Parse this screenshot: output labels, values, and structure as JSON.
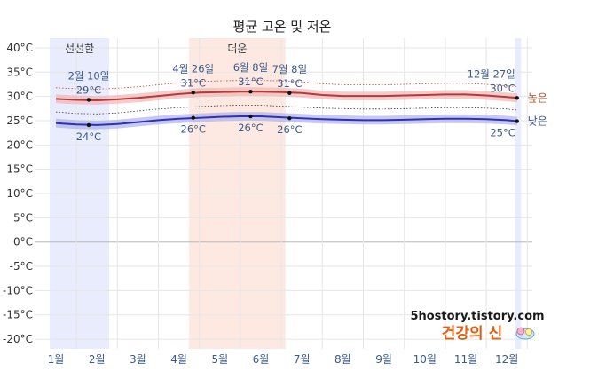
{
  "chart_data": {
    "type": "line",
    "title": "평균 고온 및 저온",
    "months": [
      "1월",
      "2월",
      "3월",
      "4월",
      "5월",
      "6월",
      "7월",
      "8월",
      "9월",
      "10월",
      "11월",
      "12월"
    ],
    "y_ticks": [
      "40°C",
      "35°C",
      "30°C",
      "25°C",
      "20°C",
      "15°C",
      "10°C",
      "5°C",
      "0°C",
      "-5°C",
      "-10°C",
      "-15°C",
      "-20°C"
    ],
    "ylim": [
      -22,
      42
    ],
    "grid": true,
    "bands": [
      {
        "label": "선선한",
        "start_month": 0.85,
        "end_month": 2.3,
        "color": "#e8ecfc"
      },
      {
        "label": "더운",
        "start_month": 4.25,
        "end_month": 6.6,
        "color": "#fde9e2"
      },
      {
        "label": "",
        "start_month": 12.2,
        "end_month": 12.35,
        "color": "#e8ecfc"
      }
    ],
    "series": [
      {
        "name": "높은",
        "color": "#b23a3a",
        "band_color": "#f1b5b5",
        "dotted_color": "#c04040",
        "x": [
          1,
          1.5,
          2,
          2.5,
          3,
          3.5,
          4,
          4.5,
          5,
          5.5,
          6,
          6.5,
          7,
          7.5,
          8,
          8.5,
          9,
          9.5,
          10,
          10.5,
          11,
          11.5,
          12,
          12.25
        ],
        "y": [
          29.5,
          29.3,
          29.2,
          29.4,
          29.7,
          30.1,
          30.5,
          30.8,
          30.9,
          31,
          31,
          30.9,
          30.7,
          30.3,
          30.1,
          30.1,
          30.1,
          30.2,
          30.3,
          30.4,
          30.4,
          30.2,
          29.9,
          29.7
        ]
      },
      {
        "name": "낮은",
        "color": "#3030b0",
        "band_color": "#aeb2ee",
        "dotted_color": "#333333",
        "x": [
          1,
          1.5,
          2,
          2.5,
          3,
          3.5,
          4,
          4.5,
          5,
          5.5,
          6,
          6.5,
          7,
          7.5,
          8,
          8.5,
          9,
          9.5,
          10,
          10.5,
          11,
          11.5,
          12,
          12.25
        ],
        "y": [
          24.5,
          24.2,
          24.1,
          24.3,
          24.7,
          25.1,
          25.4,
          25.6,
          25.8,
          25.9,
          25.9,
          25.7,
          25.5,
          25.3,
          25.2,
          25.1,
          25.1,
          25.2,
          25.3,
          25.4,
          25.4,
          25.3,
          25.1,
          24.9
        ]
      }
    ],
    "annotations": [
      {
        "date": "2월 10일",
        "value": "29°C",
        "x": 1.8,
        "y": 29.3,
        "pos": "above"
      },
      {
        "date": "",
        "value": "24°C",
        "x": 1.8,
        "y": 24.1,
        "pos": "below"
      },
      {
        "date": "4월 26일",
        "value": "31°C",
        "x": 4.35,
        "y": 30.8,
        "pos": "above"
      },
      {
        "date": "",
        "value": "26°C",
        "x": 4.35,
        "y": 25.6,
        "pos": "below"
      },
      {
        "date": "6월 8일",
        "value": "31°C",
        "x": 5.75,
        "y": 31,
        "pos": "above"
      },
      {
        "date": "",
        "value": "26°C",
        "x": 5.75,
        "y": 25.9,
        "pos": "below"
      },
      {
        "date": "7월 8일",
        "value": "31°C",
        "x": 6.7,
        "y": 30.7,
        "pos": "above"
      },
      {
        "date": "",
        "value": "26°C",
        "x": 6.7,
        "y": 25.5,
        "pos": "below"
      },
      {
        "date": "12월 27일",
        "value": "30°C",
        "x": 12.25,
        "y": 29.7,
        "pos": "above-left"
      },
      {
        "date": "",
        "value": "25°C",
        "x": 12.25,
        "y": 24.9,
        "pos": "below-left"
      }
    ]
  },
  "watermark": {
    "line1": "5hostory.tistory.com",
    "line2": "건강의 신"
  }
}
